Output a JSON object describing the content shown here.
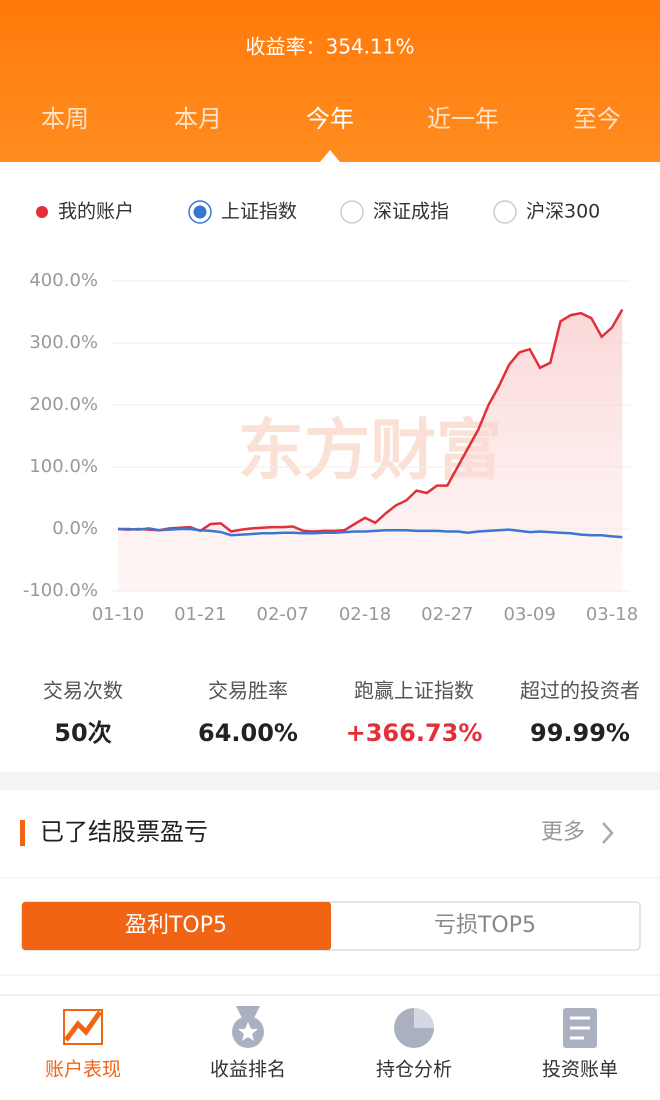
{
  "header": {
    "return_text": "收益率：354.11%"
  },
  "tabs": {
    "items": [
      "本周",
      "本月",
      "今年",
      "近一年",
      "至今"
    ],
    "active": 2
  },
  "chart_data": {
    "type": "line",
    "categories": [
      "01-10",
      null,
      null,
      null,
      null,
      null,
      null,
      null,
      "01-21",
      null,
      null,
      null,
      null,
      null,
      null,
      null,
      "02-07",
      null,
      null,
      null,
      null,
      null,
      null,
      null,
      "02-18",
      null,
      null,
      null,
      null,
      null,
      null,
      null,
      "02-27",
      null,
      null,
      null,
      null,
      null,
      null,
      null,
      "03-09",
      null,
      null,
      null,
      null,
      null,
      null,
      null,
      "03-18",
      null
    ],
    "series": [
      {
        "name": "我的账户",
        "color": "#e0303a",
        "values": [
          0,
          -1,
          0,
          -1,
          -2,
          1,
          2,
          3,
          -3,
          8,
          9,
          -4,
          -1,
          1,
          2,
          3,
          3,
          4,
          -3,
          -4,
          -3,
          -3,
          -2,
          8,
          18,
          10,
          25,
          38,
          46,
          62,
          58,
          70,
          70,
          100,
          130,
          160,
          200,
          230,
          265,
          285,
          290,
          260,
          268,
          335,
          345,
          348,
          340,
          310,
          325,
          354
        ]
      },
      {
        "name": "上证指数",
        "color": "#3a78d0",
        "values": [
          0,
          0,
          -1,
          1,
          -2,
          -1,
          0,
          0,
          -2,
          -3,
          -5,
          -10,
          -9,
          -8,
          -7,
          -7,
          -6,
          -6,
          -7,
          -7,
          -6,
          -6,
          -5,
          -4,
          -4,
          -3,
          -2,
          -2,
          -2,
          -3,
          -3,
          -3,
          -4,
          -4,
          -6,
          -4,
          -3,
          -2,
          -1,
          -3,
          -5,
          -4,
          -5,
          -6,
          -7,
          -9,
          -10,
          -10,
          -12,
          -13
        ]
      }
    ],
    "selected_series": 1,
    "unselected_indices": [
      "深证成指",
      "沪深300"
    ],
    "ylim": [
      -100,
      400
    ],
    "yticks": [
      {
        "value": 400,
        "label": "400.0%"
      },
      {
        "value": 300,
        "label": "300.0%"
      },
      {
        "value": 200,
        "label": "200.0%"
      },
      {
        "value": 100,
        "label": "100.0%"
      },
      {
        "value": 0,
        "label": "0.0%"
      },
      {
        "value": -100,
        "label": "-100.0%"
      }
    ],
    "grid": true,
    "watermark": "东方财富"
  },
  "stats": [
    {
      "label": "交易次数",
      "value": "50次"
    },
    {
      "label": "交易胜率",
      "value": "64.00%"
    },
    {
      "label": "跑赢上证指数",
      "value": "+366.73%"
    },
    {
      "label": "超过的投资者",
      "value": "99.99%"
    }
  ],
  "closed_section": {
    "title": "已了结股票盈亏",
    "more": "更多"
  },
  "toggle": {
    "items": [
      "盈利TOP5",
      "亏损TOP5"
    ],
    "active": 0
  },
  "nav": {
    "items": [
      "账户表现",
      "收益排名",
      "持仓分析",
      "投资账单"
    ],
    "active": 0
  }
}
